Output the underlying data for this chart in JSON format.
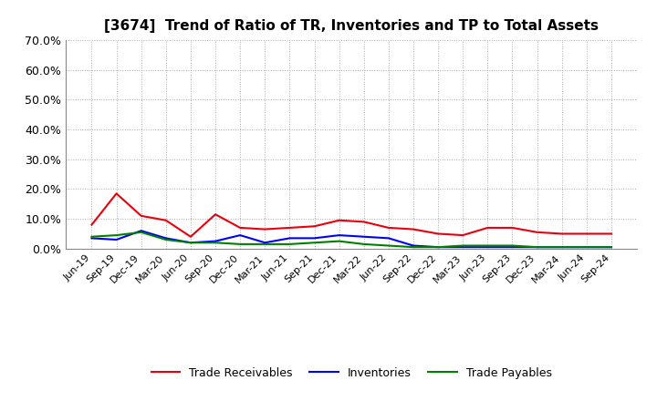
{
  "title": "[3674]  Trend of Ratio of TR, Inventories and TP to Total Assets",
  "x_labels": [
    "Jun-19",
    "Sep-19",
    "Dec-19",
    "Mar-20",
    "Jun-20",
    "Sep-20",
    "Dec-20",
    "Mar-21",
    "Jun-21",
    "Sep-21",
    "Dec-21",
    "Mar-22",
    "Jun-22",
    "Sep-22",
    "Dec-22",
    "Mar-23",
    "Jun-23",
    "Sep-23",
    "Dec-23",
    "Mar-24",
    "Jun-24",
    "Sep-24"
  ],
  "trade_receivables": [
    8.0,
    18.5,
    11.0,
    9.5,
    4.0,
    11.5,
    7.0,
    6.5,
    7.0,
    7.5,
    9.5,
    9.0,
    7.0,
    6.5,
    5.0,
    4.5,
    7.0,
    7.0,
    5.5,
    5.0,
    5.0,
    5.0
  ],
  "inventories": [
    3.5,
    3.0,
    6.0,
    3.5,
    2.0,
    2.5,
    4.5,
    2.0,
    3.5,
    3.5,
    4.5,
    4.0,
    3.5,
    1.0,
    0.5,
    0.5,
    0.5,
    0.5,
    0.5,
    0.5,
    0.5,
    0.5
  ],
  "trade_payables": [
    4.0,
    4.5,
    5.5,
    3.0,
    2.0,
    2.0,
    1.5,
    1.5,
    1.5,
    2.0,
    2.5,
    1.5,
    1.0,
    0.5,
    0.5,
    1.0,
    1.0,
    1.0,
    0.5,
    0.5,
    0.5,
    0.5
  ],
  "tr_color": "#e8000d",
  "inv_color": "#0000ff",
  "tp_color": "#008000",
  "ylim": [
    0,
    70
  ],
  "yticks": [
    0,
    10,
    20,
    30,
    40,
    50,
    60,
    70
  ],
  "ytick_labels": [
    "0.0%",
    "10.0%",
    "20.0%",
    "30.0%",
    "40.0%",
    "50.0%",
    "60.0%",
    "70.0%"
  ],
  "legend_labels": [
    "Trade Receivables",
    "Inventories",
    "Trade Payables"
  ],
  "background_color": "#ffffff",
  "grid_color": "#aaaaaa",
  "line_width": 1.5
}
